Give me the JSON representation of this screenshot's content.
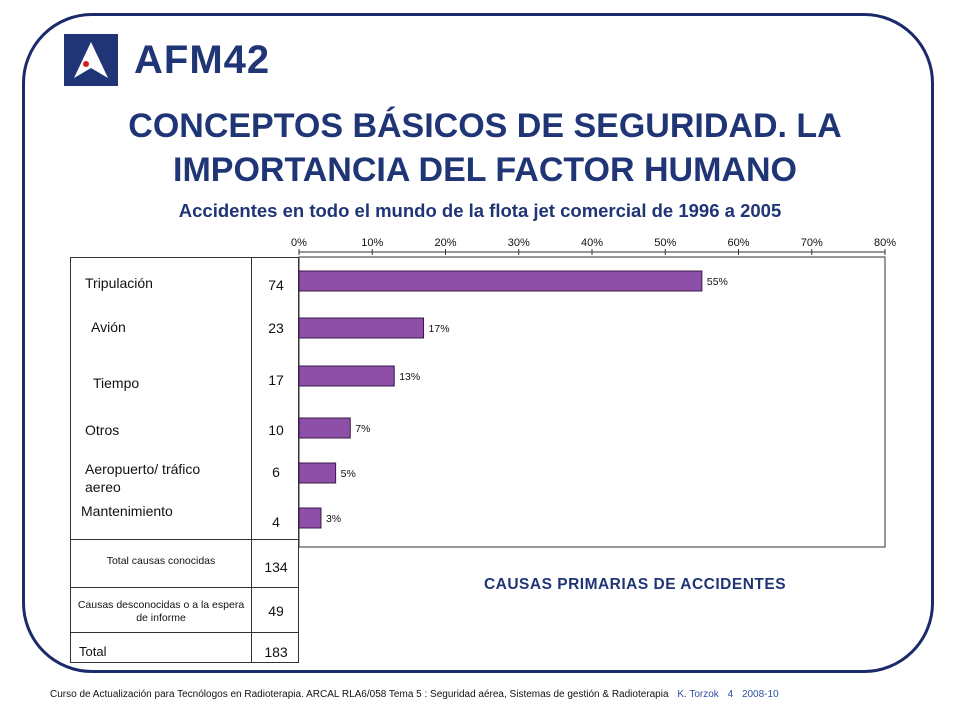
{
  "logo": {
    "text": "AFM42"
  },
  "slide": {
    "title": "CONCEPTOS BÁSICOS DE SEGURIDAD. LA IMPORTANCIA DEL FACTOR HUMANO",
    "subtitle": "Accidentes en todo el mundo de la flota jet comercial de 1996 a 2005",
    "causes_heading": "CAUSAS PRIMARIAS DE ACCIDENTES"
  },
  "table": {
    "rows": [
      {
        "label": "Tripulación",
        "count": "74"
      },
      {
        "label": "Avión",
        "count": "23"
      },
      {
        "label": "Tiempo",
        "count": "17"
      },
      {
        "label": "Otros",
        "count": "10"
      },
      {
        "label": "Aeropuerto/ tráfico aereo",
        "count": "6"
      },
      {
        "label": "Mantenimiento",
        "count": "4"
      }
    ],
    "known_label": "Total causas conocidas",
    "known_count": "134",
    "unknown_label": "Causas desconocidas o a la espera de informe",
    "unknown_count": "49",
    "total_label": "Total",
    "total_count": "183"
  },
  "chart_data": {
    "type": "bar",
    "orientation": "horizontal",
    "categories": [
      "Tripulación",
      "Avión",
      "Tiempo",
      "Otros",
      "Aeropuerto/ tráfico aereo",
      "Mantenimiento"
    ],
    "values": [
      55,
      17,
      13,
      7,
      5,
      3
    ],
    "value_labels": [
      "55%",
      "17%",
      "13%",
      "7%",
      "5%",
      "3%"
    ],
    "xlim": [
      0,
      80
    ],
    "ticks": [
      "0%",
      "10%",
      "20%",
      "30%",
      "40%",
      "50%",
      "60%",
      "70%",
      "80%"
    ],
    "bar_color": "#8e4fa8",
    "grid": false
  },
  "footer": {
    "course": "Curso de Actualización para Tecnólogos en Radioterapia.  ARCAL RLA6/058  Tema 5 : Seguridad aérea, Sistemas de gestión & Radioterapia",
    "author": "K. Torzok",
    "page": "4",
    "date": "2008-10"
  },
  "colors": {
    "title": "#1f3576",
    "frame": "#1b2a6b"
  }
}
